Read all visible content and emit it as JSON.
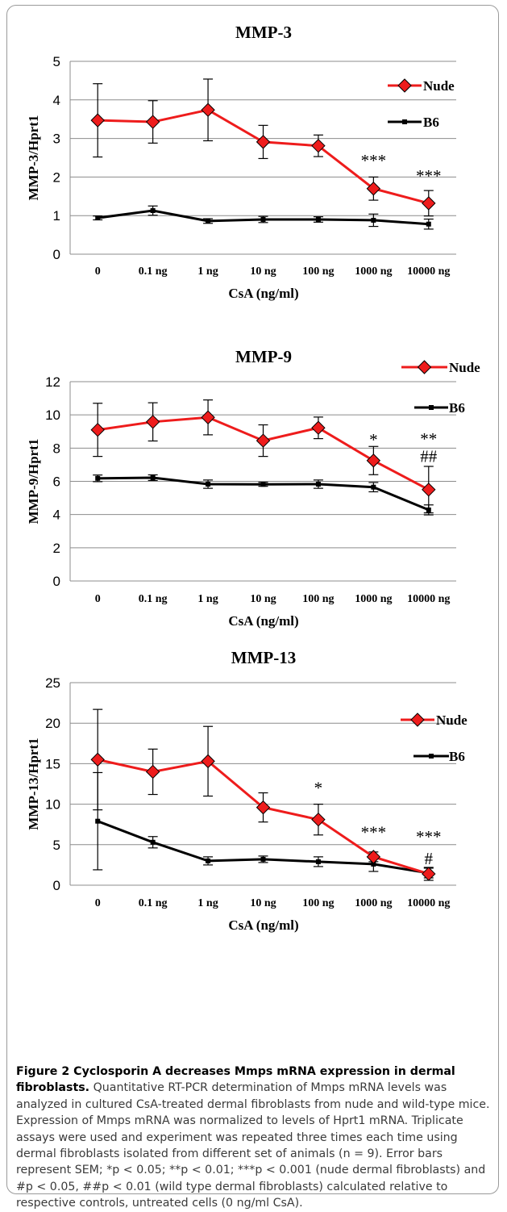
{
  "caption": {
    "title": "Figure 2 Cyclosporin A decreases Mmps mRNA expression in dermal fibroblasts.",
    "body": "Quantitative RT-PCR determination of Mmps mRNA levels was analyzed in cultured CsA-treated dermal fibroblasts from nude and wild-type mice. Expression of Mmps mRNA was normalized to levels of Hprt1 mRNA. Triplicate assays were used and experiment was repeated three times each time using dermal fibroblasts isolated from different set of animals (n = 9). Error bars represent SEM; *p < 0.05; **p < 0.01; ***p < 0.001 (nude dermal fibroblasts) and #p < 0.05, ##p < 0.01 (wild type dermal fibroblasts) calculated relative to respective controls, untreated cells (0 ng/ml CsA)."
  },
  "colors": {
    "nude": "#ee1c1c",
    "b6": "#000000",
    "grid": "#8c8c8c"
  },
  "chart_data": [
    {
      "type": "line",
      "title": "MMP-3",
      "xlabel": "CsA (ng/ml)",
      "ylabel": "MMP-3/Hprt1",
      "categories": [
        "0",
        "0.1 ng",
        "1 ng",
        "10 ng",
        "100 ng",
        "1000 ng",
        "10000 ng"
      ],
      "ylim": [
        0,
        5
      ],
      "yticks": [
        0,
        1,
        2,
        3,
        4,
        5
      ],
      "grid": true,
      "legend_placement": "top-right",
      "series": [
        {
          "name": "Nude",
          "values": [
            3.47,
            3.43,
            3.74,
            2.91,
            2.81,
            1.7,
            1.32
          ],
          "errors": [
            0.95,
            0.55,
            0.8,
            0.43,
            0.28,
            0.3,
            0.33
          ]
        },
        {
          "name": "B6",
          "values": [
            0.94,
            1.13,
            0.86,
            0.9,
            0.9,
            0.88,
            0.78
          ],
          "errors": [
            0.05,
            0.12,
            0.06,
            0.08,
            0.07,
            0.16,
            0.13
          ]
        }
      ],
      "annotations": [
        {
          "category": "1000 ng",
          "value": 2.45,
          "text": "***"
        },
        {
          "category": "10000 ng",
          "value": 2.05,
          "text": "***"
        }
      ]
    },
    {
      "type": "line",
      "title": "MMP-9",
      "xlabel": "CsA (ng/ml)",
      "ylabel": "MMP-9/Hprt1",
      "categories": [
        "0",
        "0.1 ng",
        "1 ng",
        "10 ng",
        "100 ng",
        "1000 ng",
        "10000 ng"
      ],
      "ylim": [
        0,
        12
      ],
      "yticks": [
        0,
        2,
        4,
        6,
        8,
        10,
        12
      ],
      "grid": true,
      "legend_placement": "top-right",
      "series": [
        {
          "name": "Nude",
          "values": [
            9.1,
            9.58,
            9.85,
            8.45,
            9.22,
            7.25,
            5.5
          ],
          "errors": [
            1.6,
            1.15,
            1.05,
            0.95,
            0.65,
            0.85,
            1.4
          ]
        },
        {
          "name": "B6",
          "values": [
            6.18,
            6.22,
            5.83,
            5.82,
            5.83,
            5.65,
            4.28
          ],
          "errors": [
            0.2,
            0.17,
            0.25,
            0.12,
            0.25,
            0.28,
            0.3
          ]
        }
      ],
      "annotations": [
        {
          "category": "1000 ng",
          "value": 8.55,
          "text": "*"
        },
        {
          "category": "10000 ng",
          "value": 8.6,
          "text": "**"
        },
        {
          "category": "10000 ng",
          "value": 7.55,
          "text": "##"
        }
      ]
    },
    {
      "type": "line",
      "title": "MMP-13",
      "xlabel": "CsA (ng/ml)",
      "ylabel": "MMP-13/Hprt1",
      "categories": [
        "0",
        "0.1 ng",
        "1 ng",
        "10 ng",
        "100 ng",
        "1000 ng",
        "10000 ng"
      ],
      "ylim": [
        0,
        25
      ],
      "yticks": [
        0,
        5,
        10,
        15,
        20,
        25
      ],
      "grid": true,
      "legend_placement": "top-right",
      "series": [
        {
          "name": "Nude",
          "values": [
            15.5,
            14.0,
            15.3,
            9.6,
            8.1,
            3.5,
            1.4
          ],
          "errors": [
            6.2,
            2.8,
            4.3,
            1.8,
            1.9,
            0.6,
            0.8
          ]
        },
        {
          "name": "B6",
          "values": [
            7.9,
            5.3,
            3.0,
            3.2,
            2.9,
            2.6,
            1.5
          ],
          "errors": [
            6.0,
            0.7,
            0.5,
            0.4,
            0.6,
            0.9,
            0.6
          ]
        }
      ],
      "annotations": [
        {
          "category": "100 ng",
          "value": 12.1,
          "text": "*"
        },
        {
          "category": "1000 ng",
          "value": 6.6,
          "text": "***"
        },
        {
          "category": "10000 ng",
          "value": 6.1,
          "text": "***"
        },
        {
          "category": "10000 ng",
          "value": 3.4,
          "text": "#"
        }
      ]
    }
  ]
}
